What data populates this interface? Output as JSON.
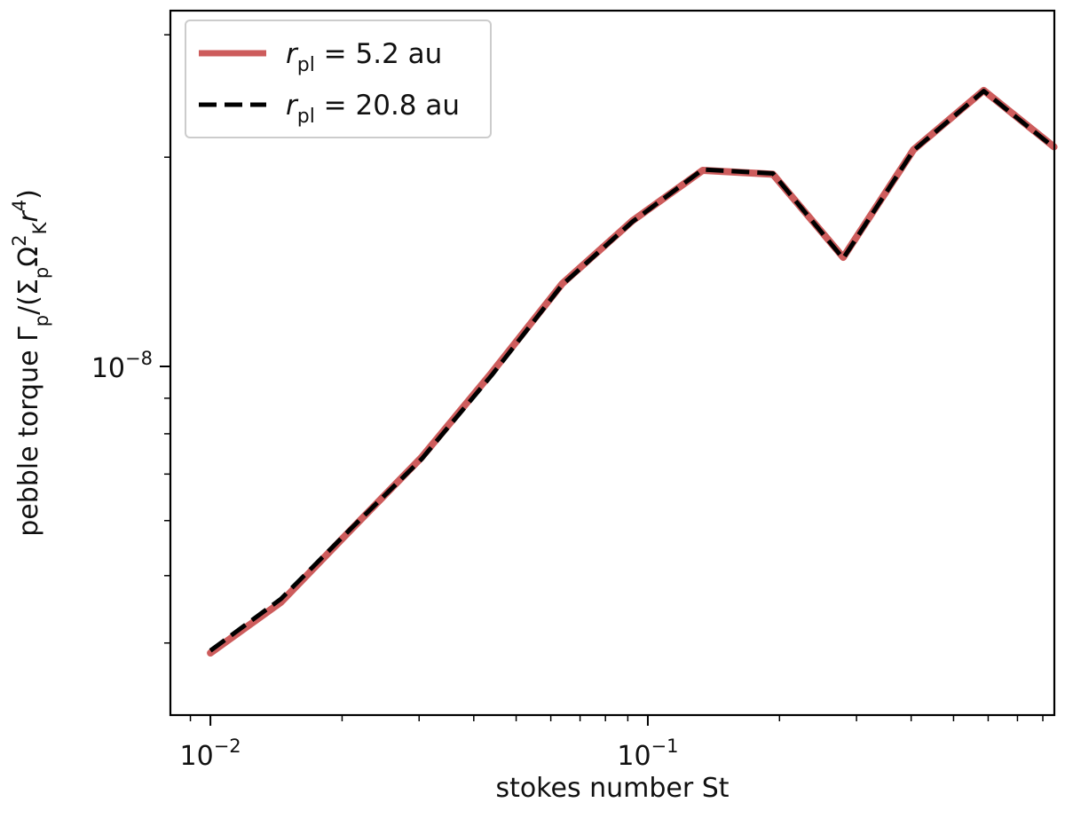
{
  "chart_data": {
    "type": "line",
    "xscale": "log",
    "yscale": "log",
    "xlim": [
      0.0081,
      0.85
    ],
    "ylim": [
      3.15e-09,
      3.25e-08
    ],
    "xlabel": "stokes number St",
    "ylabel": "pebble torque Γp/(ΣpΩK2r4)",
    "grid": false,
    "legend_position": "top-left",
    "x_ticks": [
      {
        "value": 0.01,
        "base": "10",
        "exp": "−2"
      },
      {
        "value": 0.1,
        "base": "10",
        "exp": "−1"
      }
    ],
    "y_ticks": [
      {
        "value": 1e-08,
        "base": "10",
        "exp": "−8"
      }
    ],
    "series": [
      {
        "name": "r_pl = 5.2 au",
        "legend": {
          "var": "r",
          "sub": "pl",
          "rest": " = 5.2 au"
        },
        "color": "#cd5c5c",
        "style": "solid",
        "x": [
          0.01,
          0.0145,
          0.021,
          0.0304,
          0.044,
          0.0637,
          0.0922,
          0.1335,
          0.1932,
          0.2797,
          0.4049,
          0.5861,
          0.8485
        ],
        "y": [
          3.87e-09,
          4.58e-09,
          5.83e-09,
          7.4e-09,
          9.8e-09,
          1.315e-08,
          1.62e-08,
          1.915e-08,
          1.89e-08,
          1.435e-08,
          2.05e-08,
          2.495e-08,
          2.07e-08
        ]
      },
      {
        "name": "r_pl = 20.8 au",
        "legend": {
          "var": "r",
          "sub": "pl",
          "rest": " = 20.8 au"
        },
        "color": "#000000",
        "style": "dashed",
        "x": [
          0.01,
          0.0145,
          0.021,
          0.0304,
          0.044,
          0.0637,
          0.0922,
          0.1335,
          0.1932,
          0.2797,
          0.4049,
          0.5861,
          0.8485
        ],
        "y": [
          3.9e-09,
          4.63e-09,
          5.85e-09,
          7.36e-09,
          9.72e-09,
          1.31e-08,
          1.615e-08,
          1.92e-08,
          1.895e-08,
          1.43e-08,
          2.045e-08,
          2.49e-08,
          2.065e-08
        ]
      }
    ]
  }
}
